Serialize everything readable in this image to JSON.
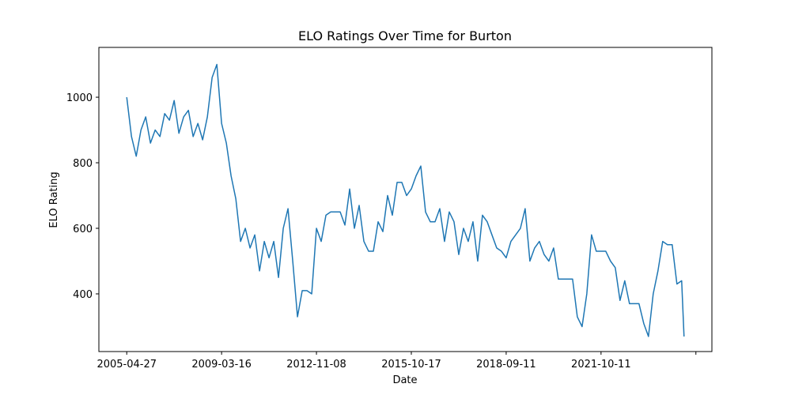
{
  "chart_data": {
    "type": "line",
    "title": "ELO Ratings Over Time for Burton",
    "x_label": "Date",
    "y_label": "ELO Rating",
    "x": [
      0,
      10,
      20,
      30,
      40,
      50,
      60,
      70,
      80,
      90,
      100,
      110,
      120,
      130,
      140,
      150,
      160,
      170,
      180,
      190,
      200,
      210,
      220,
      230,
      240,
      250,
      260,
      270,
      280,
      290,
      300,
      310,
      320,
      330,
      340,
      350,
      360,
      370,
      380,
      390,
      400,
      410,
      420,
      430,
      440,
      450,
      460,
      470,
      480,
      490,
      500,
      510,
      520,
      530,
      540,
      550,
      560,
      570,
      580,
      590,
      600,
      610,
      620,
      630,
      640,
      650,
      660,
      670,
      680,
      690,
      700,
      710,
      720,
      730,
      740,
      750,
      760,
      770,
      780,
      790,
      800,
      810,
      820,
      830,
      840,
      850,
      860,
      870,
      880,
      890,
      900,
      910,
      920,
      930,
      940,
      950,
      960,
      970,
      980,
      990,
      1000,
      1010,
      1020,
      1030,
      1040,
      1050,
      1060,
      1070,
      1080,
      1090,
      1100,
      1110,
      1120,
      1130,
      1140,
      1150,
      1160,
      1170,
      1175
    ],
    "series": [
      {
        "name": "Burton",
        "color": "#1f77b4",
        "values": [
          1000,
          880,
          820,
          900,
          940,
          860,
          900,
          880,
          950,
          930,
          990,
          890,
          940,
          960,
          880,
          920,
          870,
          940,
          1060,
          1100,
          920,
          860,
          760,
          690,
          560,
          600,
          540,
          580,
          470,
          560,
          510,
          560,
          450,
          600,
          660,
          500,
          330,
          410,
          410,
          400,
          600,
          560,
          640,
          650,
          650,
          650,
          610,
          720,
          600,
          670,
          560,
          530,
          530,
          620,
          590,
          700,
          640,
          740,
          740,
          700,
          720,
          760,
          790,
          650,
          620,
          620,
          660,
          560,
          650,
          620,
          520,
          600,
          560,
          620,
          500,
          640,
          620,
          580,
          540,
          530,
          510,
          560,
          580,
          600,
          660,
          500,
          540,
          560,
          520,
          500,
          540,
          445,
          445,
          445,
          445,
          330,
          300,
          400,
          580,
          530,
          530,
          530,
          500,
          480,
          380,
          440,
          370,
          370,
          370,
          310,
          270,
          400,
          470,
          560,
          550,
          550,
          430,
          440,
          270
        ]
      }
    ],
    "xlim": [
      -58.75,
      1233.75
    ],
    "xticks": [
      {
        "value": 0,
        "label": "2005-04-27"
      },
      {
        "value": 200,
        "label": "2009-03-16"
      },
      {
        "value": 400,
        "label": "2012-11-08"
      },
      {
        "value": 600,
        "label": "2015-10-17"
      },
      {
        "value": 800,
        "label": "2018-09-11"
      },
      {
        "value": 1000,
        "label": "2021-10-11"
      },
      {
        "value": 1200,
        "label": null
      }
    ],
    "ylim": [
      224,
      1152
    ],
    "yticks": [
      400,
      600,
      800,
      1000
    ]
  }
}
